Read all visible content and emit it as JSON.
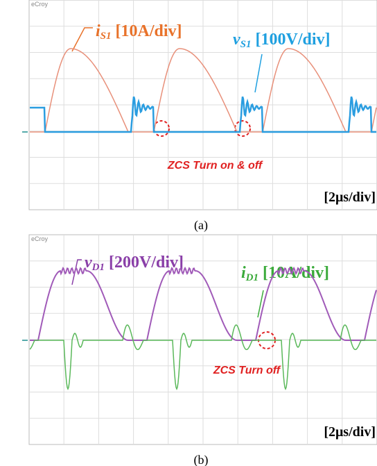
{
  "panel_a": {
    "logo": "eCroy",
    "labels": [
      {
        "symbol": "i",
        "subscript": "S1",
        "scale": "[10A/div]"
      },
      {
        "symbol": "v",
        "subscript": "S1",
        "scale": "[100V/div]"
      }
    ],
    "annotation": "ZCS Turn on & off",
    "time_scale": "[2μs/div]",
    "caption": "(a)"
  },
  "panel_b": {
    "logo": "eCroy",
    "labels": [
      {
        "symbol": "v",
        "subscript": "D1",
        "scale": "[200V/div]"
      },
      {
        "symbol": "i",
        "subscript": "D1",
        "scale": "[10A/div]"
      }
    ],
    "annotation": "ZCS Turn off",
    "time_scale": "[2μs/div]",
    "caption": "(b)"
  }
}
